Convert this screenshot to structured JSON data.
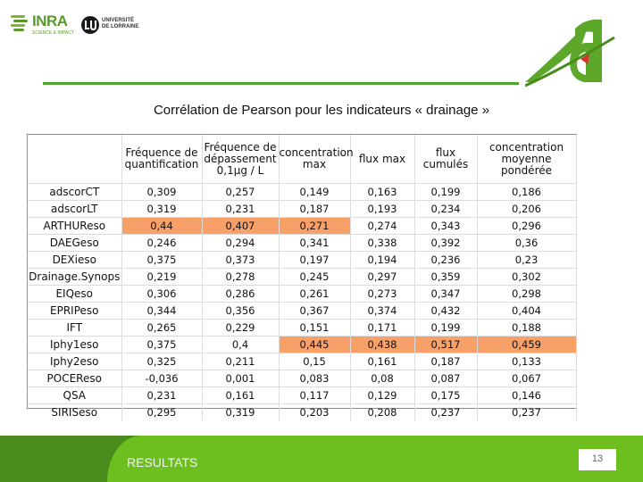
{
  "header": {
    "inra_logo": {
      "wordmark": "INRA",
      "tagline": "SCIENCE & IMPACT"
    },
    "ul_logo": {
      "line1": "UNIVERSITÉ",
      "line2": "DE LORRAINE"
    }
  },
  "colors": {
    "accent_green": "#4aa32e",
    "footer_dark": "#4a8c1c",
    "footer_light": "#6cbf1e",
    "highlight": "#f7a068"
  },
  "title": "Corrélation de Pearson pour les indicateurs « drainage »",
  "table": {
    "columns": [
      "Fréquence de quantification",
      "Fréquence de dépassement 0,1µg / L",
      "concentration max",
      "flux max",
      "flux cumulés",
      "concentration moyenne pondérée"
    ],
    "rows": [
      {
        "name": "adscorCT",
        "values": [
          "0,309",
          "0,257",
          "0,149",
          "0,163",
          "0,199",
          "0,186"
        ],
        "highlight": false
      },
      {
        "name": "adscorLT",
        "values": [
          "0,319",
          "0,231",
          "0,187",
          "0,193",
          "0,234",
          "0,206"
        ],
        "highlight": false
      },
      {
        "name": "ARTHUReso",
        "values": [
          "0,44",
          "0,407",
          "0,271",
          "0,274",
          "0,343",
          "0,296"
        ],
        "highlight": false
      },
      {
        "name": "DAEGeso",
        "values": [
          "0,246",
          "0,294",
          "0,341",
          "0,338",
          "0,392",
          "0,36"
        ],
        "highlight": false
      },
      {
        "name": "DEXieso",
        "values": [
          "0,375",
          "0,373",
          "0,197",
          "0,194",
          "0,236",
          "0,23"
        ],
        "highlight": false
      },
      {
        "name": "Drainage.Synops",
        "values": [
          "0,219",
          "0,278",
          "0,245",
          "0,297",
          "0,359",
          "0,302"
        ],
        "highlight": false
      },
      {
        "name": "EIQeso",
        "values": [
          "0,306",
          "0,286",
          "0,261",
          "0,273",
          "0,347",
          "0,298"
        ],
        "highlight": false
      },
      {
        "name": "EPRIPeso",
        "values": [
          "0,344",
          "0,356",
          "0,367",
          "0,374",
          "0,432",
          "0,404"
        ],
        "highlight": false
      },
      {
        "name": "IFT",
        "values": [
          "0,265",
          "0,229",
          "0,151",
          "0,171",
          "0,199",
          "0,188"
        ],
        "highlight": false
      },
      {
        "name": "Iphy1eso",
        "values": [
          "0,375",
          "0,4",
          "0,445",
          "0,438",
          "0,517",
          "0,459"
        ],
        "highlight": false
      },
      {
        "name": "Iphy2eso",
        "values": [
          "0,325",
          "0,211",
          "0,15",
          "0,161",
          "0,187",
          "0,133"
        ],
        "highlight": false
      },
      {
        "name": "POCEReso",
        "values": [
          "-0,036",
          "0,001",
          "0,083",
          "0,08",
          "0,087",
          "0,067"
        ],
        "highlight": false
      },
      {
        "name": "QSA",
        "values": [
          "0,231",
          "0,161",
          "0,117",
          "0,129",
          "0,175",
          "0,146"
        ],
        "highlight": false
      },
      {
        "name": "SIRISeso",
        "values": [
          "0,295",
          "0,319",
          "0,203",
          "0,208",
          "0,237",
          "0,237"
        ],
        "highlight": false
      }
    ],
    "highlighted_cells": [
      [
        2,
        0
      ],
      [
        2,
        1
      ],
      [
        2,
        2
      ],
      [
        9,
        2
      ],
      [
        9,
        3
      ],
      [
        9,
        4
      ],
      [
        9,
        5
      ]
    ]
  },
  "footer": {
    "section": "RESULTATS",
    "page_number": "13"
  }
}
